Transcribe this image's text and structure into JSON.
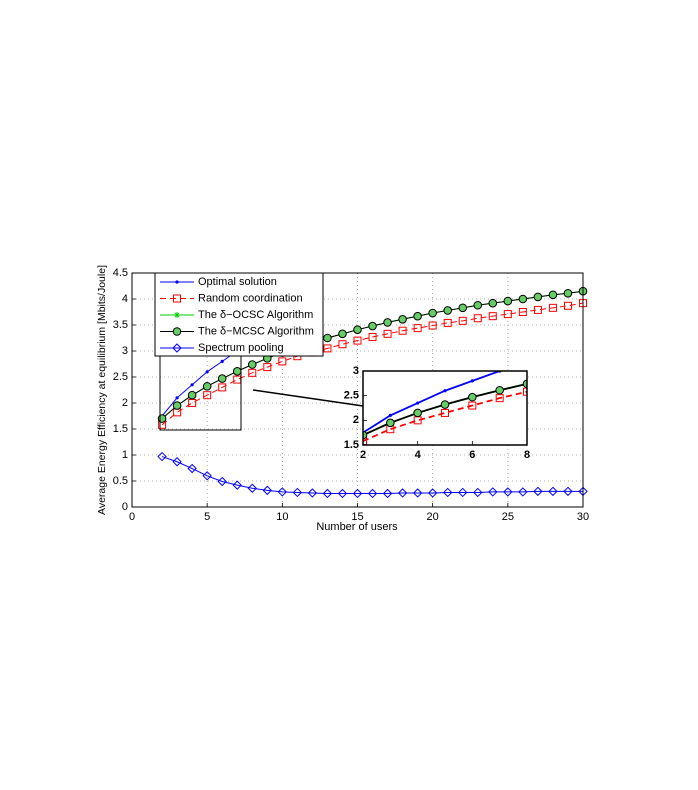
{
  "chart_data": {
    "type": "line",
    "x_label": "Number of users",
    "y_label": "Average Energy Efficiency at equilibrium [Mbits/Joule]",
    "x": [
      2,
      3,
      4,
      5,
      6,
      7,
      8,
      9,
      10,
      11,
      12,
      13,
      14,
      15,
      16,
      17,
      18,
      19,
      20,
      21,
      22,
      23,
      24,
      25,
      26,
      27,
      28,
      29,
      30
    ],
    "xlim": [
      0,
      30
    ],
    "xticks": [
      0,
      5,
      10,
      15,
      20,
      25,
      30
    ],
    "ylim": [
      0,
      4.5
    ],
    "yticks": [
      0,
      0.5,
      1,
      1.5,
      2,
      2.5,
      3,
      3.5,
      4,
      4.5
    ],
    "grid": true,
    "legend": "upper left",
    "series": [
      {
        "name": "Optimal solution",
        "color": "#0000ff",
        "marker": "dot",
        "linestyle": "solid",
        "values": [
          1.75,
          2.1,
          2.35,
          2.6,
          2.8,
          3.0,
          null,
          null,
          null,
          null,
          null,
          null,
          null,
          null,
          null,
          null,
          null,
          null,
          null,
          null,
          null,
          null,
          null,
          null,
          null,
          null,
          null,
          null,
          null
        ]
      },
      {
        "name": "Random coordination",
        "color": "#ff0000",
        "marker": "square",
        "linestyle": "dashed",
        "values": [
          1.58,
          1.82,
          2.0,
          2.15,
          2.3,
          2.45,
          2.58,
          2.69,
          2.8,
          2.9,
          2.97,
          3.05,
          3.13,
          3.2,
          3.27,
          3.33,
          3.39,
          3.44,
          3.49,
          3.54,
          3.58,
          3.63,
          3.67,
          3.71,
          3.75,
          3.79,
          3.83,
          3.87,
          3.92
        ]
      },
      {
        "name": "The δ−OCSC Algorithm",
        "color": "#00cc00",
        "marker": "star",
        "linestyle": "solid",
        "values": [
          1.7,
          1.95,
          2.15,
          2.32,
          2.47,
          2.61,
          2.74,
          2.86,
          2.97,
          3.07,
          3.16,
          3.25,
          3.33,
          3.41,
          3.48,
          3.55,
          3.61,
          3.67,
          3.73,
          3.78,
          3.83,
          3.88,
          3.92,
          3.96,
          4.0,
          4.04,
          4.08,
          4.11,
          4.15
        ]
      },
      {
        "name": "The δ−MCSC Algorithm",
        "color": "#000000",
        "marker": "circle",
        "markerfacecolor": "#66cc66",
        "linestyle": "solid",
        "values": [
          1.7,
          1.95,
          2.15,
          2.32,
          2.47,
          2.61,
          2.74,
          2.86,
          2.97,
          3.07,
          3.16,
          3.25,
          3.33,
          3.41,
          3.48,
          3.55,
          3.61,
          3.67,
          3.73,
          3.78,
          3.83,
          3.88,
          3.92,
          3.96,
          4.0,
          4.04,
          4.08,
          4.11,
          4.15
        ]
      },
      {
        "name": "Spectrum pooling",
        "color": "#0000ff",
        "marker": "diamond",
        "linestyle": "solid",
        "values": [
          0.97,
          0.87,
          0.74,
          0.6,
          0.49,
          0.42,
          0.36,
          0.32,
          0.29,
          0.28,
          0.27,
          0.26,
          0.26,
          0.26,
          0.26,
          0.26,
          0.27,
          0.27,
          0.27,
          0.28,
          0.28,
          0.28,
          0.29,
          0.29,
          0.29,
          0.3,
          0.3,
          0.3,
          0.3
        ]
      }
    ],
    "inset": {
      "xlim": [
        2,
        8
      ],
      "xticks": [
        2,
        4,
        6,
        8
      ],
      "ylim": [
        1.5,
        3
      ],
      "yticks": [
        1.5,
        2,
        2.5,
        3
      ]
    }
  }
}
